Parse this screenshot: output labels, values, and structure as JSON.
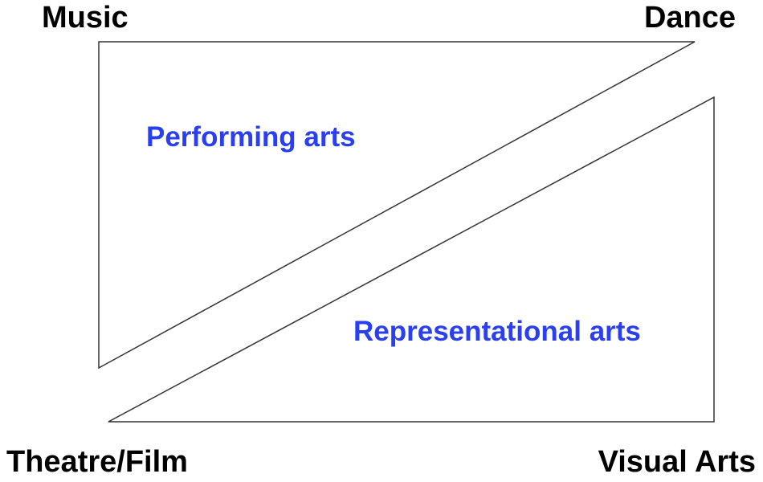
{
  "corners": {
    "top_left": "Music",
    "top_right": "Dance",
    "bottom_left": "Theatre/Film",
    "bottom_right": "Visual Arts"
  },
  "regions": {
    "upper": "Performing arts",
    "lower": "Representational arts"
  },
  "colors": {
    "region_label": "#2a3ff0",
    "corner_label": "#000000",
    "outline": "#333333"
  }
}
